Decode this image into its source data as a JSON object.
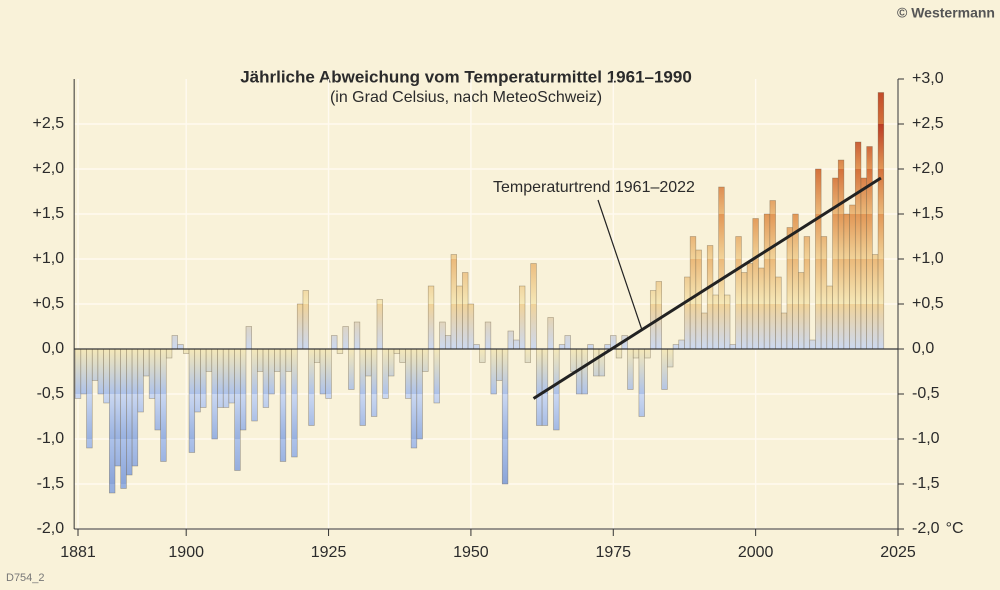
{
  "chart_data": {
    "type": "bar",
    "title": "Jährliche Abweichung vom Temperaturmittel 1961–1990",
    "subtitle": "(in Grad Celsius, nach MeteoSchweiz)",
    "copyright": "© Westermann",
    "code": "D754_2",
    "y2_unit": "°C",
    "x": [
      1881,
      1882,
      1883,
      1884,
      1885,
      1886,
      1887,
      1888,
      1889,
      1890,
      1891,
      1892,
      1893,
      1894,
      1895,
      1896,
      1897,
      1898,
      1899,
      1900,
      1901,
      1902,
      1903,
      1904,
      1905,
      1906,
      1907,
      1908,
      1909,
      1910,
      1911,
      1912,
      1913,
      1914,
      1915,
      1916,
      1917,
      1918,
      1919,
      1920,
      1921,
      1922,
      1923,
      1924,
      1925,
      1926,
      1927,
      1928,
      1929,
      1930,
      1931,
      1932,
      1933,
      1934,
      1935,
      1936,
      1937,
      1938,
      1939,
      1940,
      1941,
      1942,
      1943,
      1944,
      1945,
      1946,
      1947,
      1948,
      1949,
      1950,
      1951,
      1952,
      1953,
      1954,
      1955,
      1956,
      1957,
      1958,
      1959,
      1960,
      1961,
      1962,
      1963,
      1964,
      1965,
      1966,
      1967,
      1968,
      1969,
      1970,
      1971,
      1972,
      1973,
      1974,
      1975,
      1976,
      1977,
      1978,
      1979,
      1980,
      1981,
      1982,
      1983,
      1984,
      1985,
      1986,
      1987,
      1988,
      1989,
      1990,
      1991,
      1992,
      1993,
      1994,
      1995,
      1996,
      1997,
      1998,
      1999,
      2000,
      2001,
      2002,
      2003,
      2004,
      2005,
      2006,
      2007,
      2008,
      2009,
      2010,
      2011,
      2012,
      2013,
      2014,
      2015,
      2016,
      2017,
      2018,
      2019,
      2020,
      2021,
      2022
    ],
    "values": [
      -0.55,
      -0.5,
      -1.1,
      -0.35,
      -0.5,
      -0.6,
      -1.6,
      -1.3,
      -1.55,
      -1.4,
      -1.3,
      -0.7,
      -0.3,
      -0.55,
      -0.9,
      -1.25,
      -0.1,
      0.15,
      0.05,
      -0.05,
      -1.15,
      -0.7,
      -0.65,
      -0.25,
      -1.0,
      -0.65,
      -0.65,
      -0.6,
      -1.35,
      -0.9,
      0.25,
      -0.8,
      -0.25,
      -0.65,
      -0.5,
      -0.25,
      -1.25,
      -0.25,
      -1.2,
      0.5,
      0.65,
      -0.85,
      -0.15,
      -0.5,
      -0.55,
      0.15,
      -0.05,
      0.25,
      -0.45,
      0.3,
      -0.85,
      -0.3,
      -0.75,
      0.55,
      -0.55,
      -0.3,
      -0.05,
      -0.15,
      -0.55,
      -1.1,
      -1.0,
      -0.25,
      0.7,
      -0.6,
      0.3,
      0.15,
      1.05,
      0.7,
      0.85,
      0.5,
      0.05,
      -0.15,
      0.3,
      -0.5,
      -0.35,
      -1.5,
      0.2,
      0.1,
      0.7,
      -0.15,
      0.95,
      -0.85,
      -0.85,
      0.35,
      -0.9,
      0.05,
      0.15,
      -0.25,
      -0.5,
      -0.5,
      0.05,
      -0.3,
      -0.3,
      0.05,
      0.15,
      -0.1,
      0.15,
      -0.45,
      -0.1,
      -0.75,
      -0.1,
      0.65,
      0.75,
      -0.45,
      -0.2,
      0.05,
      0.1,
      0.8,
      1.25,
      1.1,
      0.4,
      1.15,
      0.6,
      1.8,
      0.6,
      0.05,
      1.25,
      0.85,
      0.95,
      1.45,
      0.9,
      1.5,
      1.65,
      0.8,
      0.4,
      1.35,
      1.5,
      0.85,
      1.25,
      0.1,
      2.0,
      1.25,
      0.7,
      1.9,
      2.1,
      1.5,
      1.6,
      2.3,
      1.9,
      2.25,
      1.05,
      2.85
    ],
    "band_colors": [
      "#8aa4d8",
      "#98b1e0",
      "#adc2ea",
      "#cbd8f1",
      "#f5e8b8",
      "#f1d399",
      "#ebb97a",
      "#e29756",
      "#d4713a",
      "#bb3b23"
    ],
    "trend": {
      "label": "Temperaturtrend 1961–2022",
      "x": [
        1961,
        2022
      ],
      "values": [
        -0.55,
        1.9
      ],
      "color": "#222222"
    },
    "xlim": [
      1881,
      2025
    ],
    "xticks": [
      1881,
      1900,
      1925,
      1950,
      1975,
      2000,
      2025
    ],
    "ylim": [
      -2,
      3
    ],
    "yticks": [
      {
        "value": -2,
        "label": "-2,0"
      },
      {
        "value": -1.5,
        "label": "-1,5"
      },
      {
        "value": -1,
        "label": "-1,0"
      },
      {
        "value": -0.5,
        "label": "-0,5"
      },
      {
        "value": 0,
        "label": "0,0"
      },
      {
        "value": 0.5,
        "label": "+0,5"
      },
      {
        "value": 1,
        "label": "+1,0"
      },
      {
        "value": 1.5,
        "label": "+1,5"
      },
      {
        "value": 2,
        "label": "+2,0"
      },
      {
        "value": 2.5,
        "label": "+2,5"
      }
    ],
    "y2lim": [
      -2,
      3
    ],
    "y2ticks": [
      {
        "value": -2,
        "label": "-2,0"
      },
      {
        "value": -1.5,
        "label": "-1,5"
      },
      {
        "value": -1,
        "label": "-1,0"
      },
      {
        "value": -0.5,
        "label": "-0,5"
      },
      {
        "value": 0,
        "label": "0,0"
      },
      {
        "value": 0.5,
        "label": "+0,5"
      },
      {
        "value": 1,
        "label": "+1,0"
      },
      {
        "value": 1.5,
        "label": "+1,5"
      },
      {
        "value": 2,
        "label": "+2,0"
      },
      {
        "value": 2.5,
        "label": "+2,5"
      },
      {
        "value": 3,
        "label": "+3,0"
      }
    ],
    "grid": true
  }
}
